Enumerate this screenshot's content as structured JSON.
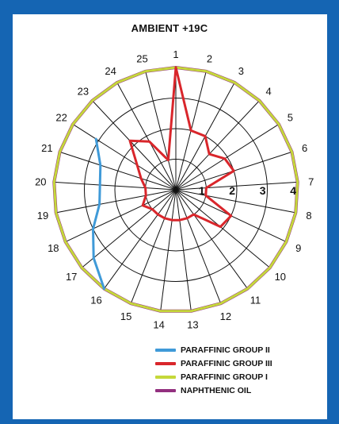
{
  "chart_data": {
    "type": "radar",
    "title": "AMBIENT +19C",
    "axes": [
      "1",
      "2",
      "3",
      "4",
      "5",
      "6",
      "7",
      "8",
      "9",
      "10",
      "11",
      "12",
      "13",
      "14",
      "15",
      "16",
      "17",
      "18",
      "19",
      "20",
      "21",
      "22",
      "23",
      "24",
      "25"
    ],
    "radial_ticks": [
      "1",
      "2",
      "3",
      "4"
    ],
    "rlim": [
      0,
      4
    ],
    "grid": true,
    "legend_position": "bottom",
    "series": [
      {
        "name": "PARAFFINIC GROUP II",
        "color": "#3f9ad8",
        "points": [
          [
            16,
            4.0
          ],
          [
            17,
            3.5
          ],
          [
            18,
            3.0
          ],
          [
            19,
            2.55
          ],
          [
            21,
            2.6
          ],
          [
            22,
            3.1
          ]
        ]
      },
      {
        "name": "PARAFFINIC GROUP III",
        "color": "#d9262b",
        "values": [
          4.0,
          2.0,
          2.0,
          1.6,
          1.9,
          2.0,
          1.0,
          1.0,
          2.0,
          1.9,
          1.0,
          1.0,
          1.0,
          1.0,
          1.0,
          1.0,
          1.0,
          1.2,
          1.0,
          1.0,
          1.2,
          1.5,
          2.2,
          1.8,
          1.0
        ]
      },
      {
        "name": "PARAFFINIC GROUP I",
        "color": "#c5d83a",
        "values": [
          4.0,
          4.0,
          4.0,
          4.0,
          4.0,
          4.0,
          4.0,
          4.0,
          4.0,
          4.0,
          4.0,
          4.0,
          4.0,
          4.0,
          4.0,
          4.0,
          4.0,
          4.0,
          4.0,
          4.0,
          4.0,
          4.0,
          4.0,
          4.0,
          4.0
        ]
      },
      {
        "name": "NAPHTHENIC OIL",
        "color": "#93307f",
        "values": [
          4.0,
          4.0,
          4.0,
          4.0,
          4.0,
          4.0,
          4.0,
          4.0,
          4.0,
          4.0,
          4.0,
          4.0,
          4.0,
          4.0,
          4.0,
          4.0,
          4.0,
          4.0,
          4.0,
          4.0,
          4.0,
          4.0,
          4.0,
          4.0,
          4.0
        ]
      }
    ]
  },
  "legend": {
    "items": [
      {
        "label": "PARAFFINIC GROUP II",
        "color": "#3f9ad8"
      },
      {
        "label": "PARAFFINIC GROUP III",
        "color": "#d9262b"
      },
      {
        "label": "PARAFFINIC GROUP I",
        "color": "#c5d83a"
      },
      {
        "label": "NAPHTHENIC OIL",
        "color": "#93307f"
      }
    ]
  }
}
